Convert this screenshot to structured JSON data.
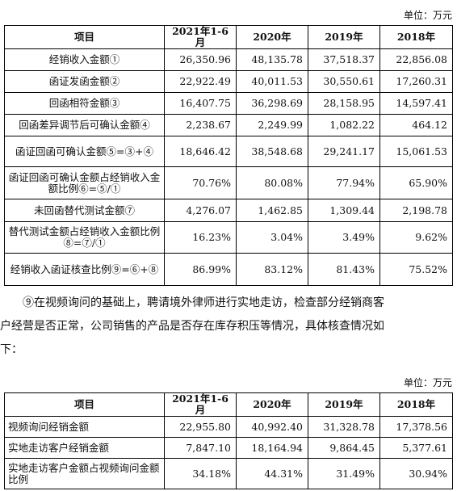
{
  "unit_label_1": "单位：万元",
  "table1": {
    "headers": [
      "项目",
      "2021年1-6月",
      "2020年",
      "2019年",
      "2018年"
    ],
    "rows": [
      {
        "label": "经销收入金额①",
        "values": [
          "26,350.96",
          "48,135.78",
          "37,518.37",
          "22,856.08"
        ]
      },
      {
        "label": "函证发函金额②",
        "values": [
          "22,922.49",
          "40,011.53",
          "30,550.61",
          "17,260.31"
        ]
      },
      {
        "label": "回函相符金额③",
        "values": [
          "16,407.75",
          "36,298.69",
          "28,158.95",
          "14,597.41"
        ]
      },
      {
        "label": "回函差异调节后可确认金额④",
        "values": [
          "2,238.67",
          "2,249.99",
          "1,082.22",
          "464.12"
        ]
      },
      {
        "label": "函证回函可确认金额⑤=③+④",
        "values": [
          "18,646.42",
          "38,548.68",
          "29,241.17",
          "15,061.53"
        ]
      },
      {
        "label": "函证回函可确认金额占经销收入金额比例⑥=⑤/①",
        "values": [
          "70.76%",
          "80.08%",
          "77.94%",
          "65.90%"
        ]
      },
      {
        "label": "未回函替代测试金额⑦",
        "values": [
          "4,276.07",
          "1,462.85",
          "1,309.44",
          "2,198.78"
        ]
      },
      {
        "label": "替代测试金额占经销收入金额比例⑧=⑦/①",
        "values": [
          "16.23%",
          "3.04%",
          "3.49%",
          "9.62%"
        ]
      },
      {
        "label": "经销收入函证核查比例⑨=⑥+⑧",
        "values": [
          "86.99%",
          "83.12%",
          "81.43%",
          "75.52%"
        ]
      }
    ]
  },
  "paragraph": {
    "line1": "⑨在视频询问的基础上，聘请境外律师进行实地走访，检查部分经销商客",
    "line2": "户经营是否正常，公司销售的产品是否存在库存积压等情况，具体核查情况如",
    "line3": "下："
  },
  "unit_label_2": "单位：万元",
  "table2": {
    "headers": [
      "项目",
      "2021年1-6月",
      "2020年",
      "2019年",
      "2018年"
    ],
    "rows": [
      {
        "label": "视频询问经销金额",
        "values": [
          "22,955.80",
          "40,992.40",
          "31,328.78",
          "17,378.56"
        ]
      },
      {
        "label": "实地走访客户经销金额",
        "values": [
          "7,847.10",
          "18,164.94",
          "9,864.45",
          "5,377.61"
        ]
      },
      {
        "label": "实地走访客户金额占视频询问金额比例",
        "values": [
          "34.18%",
          "44.31%",
          "31.49%",
          "30.94%"
        ]
      }
    ]
  }
}
